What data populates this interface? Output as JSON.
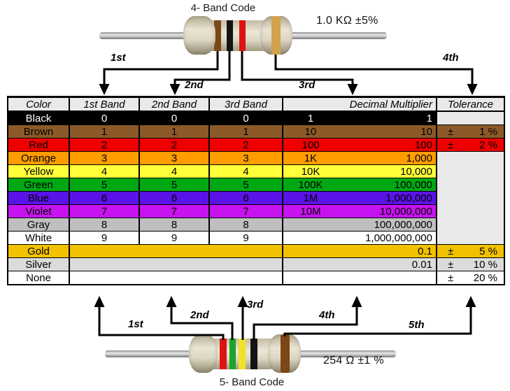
{
  "top_resistor": {
    "title": "4- Band Code",
    "value_label": "1.0 KΩ  ±5%",
    "bands": [
      {
        "name": "brown",
        "hex": "#7b4a14"
      },
      {
        "name": "black",
        "hex": "#141414"
      },
      {
        "name": "red",
        "hex": "#de1212"
      },
      {
        "name": "gold",
        "hex": "#d2a24c"
      }
    ],
    "arrow_labels": [
      "1st",
      "2nd",
      "3rd",
      "4th"
    ]
  },
  "bottom_resistor": {
    "title": "5- Band Code",
    "value_label": "254 Ω  ±1 %",
    "bands": [
      {
        "name": "red",
        "hex": "#de1212"
      },
      {
        "name": "green",
        "hex": "#1ea32b"
      },
      {
        "name": "yellow",
        "hex": "#efe32a"
      },
      {
        "name": "black",
        "hex": "#141414"
      },
      {
        "name": "brown",
        "hex": "#7b4714"
      }
    ],
    "arrow_labels": [
      "1st",
      "2nd",
      "3rd",
      "4th",
      "5th"
    ]
  },
  "table": {
    "headers": [
      "Color",
      "1st Band",
      "2nd Band",
      "3rd Band",
      "Decimal Multiplier",
      "Tolerance"
    ],
    "header_bg": "#e9e9e9",
    "blank_bg": "#e9e9e9",
    "rows": [
      {
        "name": "Black",
        "bg": "#000000",
        "fg": "#ffffff",
        "b1": "0",
        "b2": "0",
        "b3": "0",
        "mult_short": "1",
        "mult_full": "1"
      },
      {
        "name": "Brown",
        "bg": "#8c5a28",
        "fg": "#000000",
        "b1": "1",
        "b2": "1",
        "b3": "1",
        "mult_short": "10",
        "mult_full": "10",
        "tol_pm": "±",
        "tol_val": "1 %"
      },
      {
        "name": "Red",
        "bg": "#ee0000",
        "fg": "#000000",
        "b1": "2",
        "b2": "2",
        "b3": "2",
        "mult_short": "100",
        "mult_full": "100",
        "tol_pm": "±",
        "tol_val": "2 %"
      },
      {
        "name": "Orange",
        "bg": "#ff9c00",
        "fg": "#000000",
        "b1": "3",
        "b2": "3",
        "b3": "3",
        "mult_short": "1K",
        "mult_full": "1,000"
      },
      {
        "name": "Yellow",
        "bg": "#ffff3a",
        "fg": "#000000",
        "b1": "4",
        "b2": "4",
        "b3": "4",
        "mult_short": "10K",
        "mult_full": "10,000"
      },
      {
        "name": "Green",
        "bg": "#00a813",
        "fg": "#000000",
        "b1": "5",
        "b2": "5",
        "b3": "5",
        "mult_short": "100K",
        "mult_full": "100,000"
      },
      {
        "name": "Blue",
        "bg": "#5a13e6",
        "fg": "#000000",
        "b1": "6",
        "b2": "6",
        "b3": "6",
        "mult_short": "1M",
        "mult_full": "1,000,000"
      },
      {
        "name": "Violet",
        "bg": "#c713ef",
        "fg": "#000000",
        "b1": "7",
        "b2": "7",
        "b3": "7",
        "mult_short": "10M",
        "mult_full": "10,000,000"
      },
      {
        "name": "Gray",
        "bg": "#bfbfbf",
        "fg": "#000000",
        "b1": "8",
        "b2": "8",
        "b3": "8",
        "mult_short": "",
        "mult_full": "100,000,000"
      },
      {
        "name": "White",
        "bg": "#ffffff",
        "fg": "#000000",
        "b1": "9",
        "b2": "9",
        "b3": "9",
        "mult_short": "",
        "mult_full": "1,000,000,000"
      },
      {
        "name": "Gold",
        "bg": "#f2c200",
        "fg": "#000000",
        "bands_merged": true,
        "mult_short": "",
        "mult_full": "0.1",
        "tol_pm": "±",
        "tol_val": "5 %"
      },
      {
        "name": "Silver",
        "bg": "#dbdbdb",
        "fg": "#000000",
        "bands_merged": true,
        "mult_short": "",
        "mult_full": "0.01",
        "tol_pm": "±",
        "tol_val": "10 %"
      },
      {
        "name": "None",
        "bg": "#ffffff",
        "fg": "#000000",
        "bands_merged": true,
        "mult_short": "",
        "mult_full": "",
        "tol_pm": "±",
        "tol_val": "20 %"
      }
    ]
  }
}
